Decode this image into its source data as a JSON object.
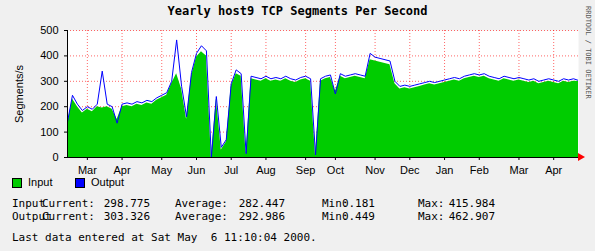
{
  "chart_data": {
    "type": "area",
    "title": "Yearly host9 TCP Segments Per Second",
    "ylabel": "Segments/s",
    "watermark": "RRDTOOL / TOBI OETIKER",
    "categories": [
      null,
      null,
      null,
      null,
      "Mar",
      null,
      null,
      null,
      null,
      null,
      null,
      "Apr",
      null,
      null,
      null,
      null,
      null,
      null,
      null,
      "May",
      null,
      null,
      null,
      null,
      null,
      null,
      "Jun",
      null,
      null,
      null,
      null,
      null,
      null,
      "Jul",
      null,
      null,
      null,
      null,
      null,
      null,
      "Aug",
      null,
      null,
      null,
      null,
      null,
      null,
      null,
      "Sep",
      null,
      null,
      null,
      null,
      null,
      "Oct",
      null,
      null,
      null,
      null,
      null,
      null,
      null,
      "Nov",
      null,
      null,
      null,
      null,
      null,
      null,
      "Dec",
      null,
      null,
      null,
      null,
      null,
      null,
      "Jan",
      null,
      null,
      null,
      null,
      null,
      null,
      "Feb",
      null,
      null,
      null,
      null,
      null,
      null,
      null,
      "Mar",
      null,
      null,
      null,
      null,
      null,
      null,
      "Apr",
      null,
      null,
      null,
      null,
      null
    ],
    "series": [
      {
        "name": "Input",
        "color": "#00cc00",
        "type": "area",
        "values": [
          130,
          230,
          200,
          175,
          190,
          180,
          200,
          195,
          200,
          190,
          150,
          200,
          205,
          200,
          210,
          205,
          215,
          210,
          225,
          235,
          245,
          290,
          330,
          270,
          150,
          320,
          395,
          415.984,
          400,
          0.181,
          230,
          30,
          60,
          280,
          330,
          320,
          10,
          310,
          305,
          300,
          310,
          300,
          305,
          300,
          310,
          300,
          295,
          305,
          310,
          300,
          5,
          300,
          310,
          315,
          260,
          320,
          310,
          315,
          320,
          315,
          310,
          385,
          380,
          375,
          370,
          365,
          290,
          270,
          275,
          270,
          275,
          280,
          285,
          290,
          285,
          290,
          295,
          300,
          305,
          300,
          310,
          315,
          320,
          315,
          320,
          310,
          305,
          300,
          310,
          305,
          300,
          305,
          300,
          295,
          300,
          290,
          295,
          300,
          295,
          290,
          300,
          295,
          300,
          298.775
        ]
      },
      {
        "name": "Output",
        "color": "#0000ff",
        "type": "line",
        "values": [
          140,
          245,
          210,
          185,
          200,
          190,
          210,
          340,
          210,
          200,
          135,
          210,
          215,
          210,
          220,
          215,
          225,
          220,
          235,
          245,
          255,
          300,
          462.907,
          280,
          160,
          335,
          410,
          440,
          420,
          0.449,
          240,
          40,
          70,
          290,
          345,
          330,
          15,
          320,
          315,
          310,
          320,
          310,
          315,
          310,
          320,
          310,
          305,
          315,
          320,
          310,
          10,
          310,
          320,
          325,
          250,
          330,
          320,
          325,
          330,
          325,
          320,
          410,
          395,
          390,
          385,
          380,
          300,
          280,
          285,
          280,
          285,
          290,
          295,
          300,
          295,
          300,
          305,
          310,
          315,
          310,
          320,
          325,
          330,
          325,
          330,
          320,
          315,
          310,
          320,
          315,
          310,
          315,
          310,
          305,
          310,
          300,
          305,
          310,
          305,
          300,
          310,
          305,
          310,
          303.326
        ]
      }
    ],
    "ylim": [
      0,
      500
    ],
    "yticks": [
      0,
      100,
      200,
      300,
      400,
      500
    ],
    "grid": true,
    "stats": {
      "labels": [
        "Current:",
        "Average:",
        "Min:",
        "Max:"
      ],
      "values": [
        [
          298.775,
          282.447,
          0.181,
          415.984
        ],
        [
          303.326,
          292.986,
          0.449,
          462.907
        ]
      ]
    },
    "footer": "Last data entered at Sat May  6 11:10:04 2000."
  }
}
